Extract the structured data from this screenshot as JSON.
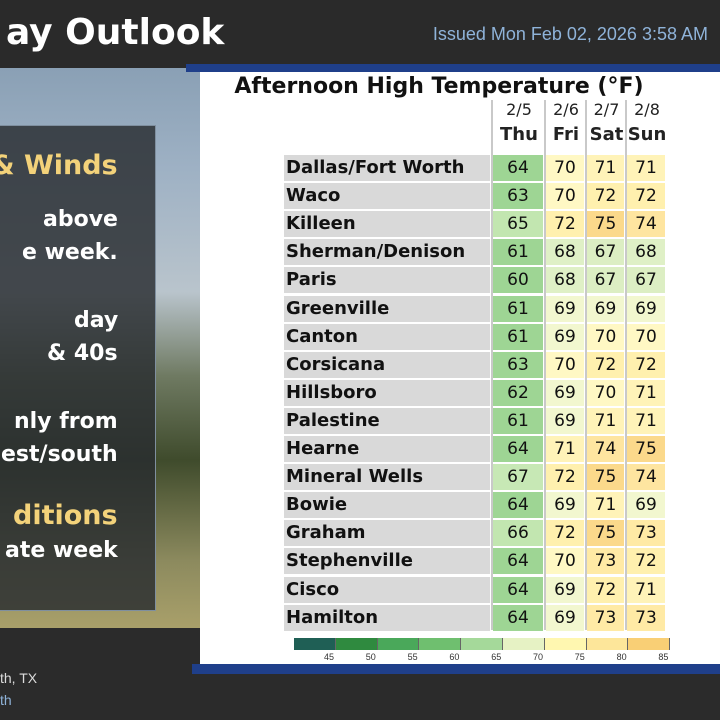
{
  "header": {
    "title": "ay Outlook",
    "issued": "Issued Mon Feb 02, 2026 3:58 AM"
  },
  "side_panel": {
    "lines": [
      {
        "text": "& Winds",
        "style": "head"
      },
      {
        "text": "above",
        "style": "body"
      },
      {
        "text": "e week.",
        "style": "body"
      },
      {
        "text": "day",
        "style": "body"
      },
      {
        "text": "& 40s",
        "style": "body"
      },
      {
        "text": "nly from",
        "style": "body"
      },
      {
        "text": "est/south",
        "style": "body"
      },
      {
        "text": "ditions",
        "style": "head"
      },
      {
        "text": "ate week",
        "style": "body"
      }
    ]
  },
  "footer": {
    "location": "th, TX",
    "link": "th"
  },
  "table": {
    "title": "Afternoon High Temperature (°F)",
    "columns": [
      {
        "date": "2/5",
        "day": "Thu"
      },
      {
        "date": "2/6",
        "day": "Fri"
      },
      {
        "date": "2/7",
        "day": "Sat"
      },
      {
        "date": "2/8",
        "day": "Sun"
      }
    ],
    "rows": [
      {
        "city": "Dallas/Fort Worth",
        "values": [
          64,
          70,
          71,
          71
        ]
      },
      {
        "city": "Waco",
        "values": [
          63,
          70,
          72,
          72
        ]
      },
      {
        "city": "Killeen",
        "values": [
          65,
          72,
          75,
          74
        ]
      },
      {
        "city": "Sherman/Denison",
        "values": [
          61,
          68,
          67,
          68
        ]
      },
      {
        "city": "Paris",
        "values": [
          60,
          68,
          67,
          67
        ]
      },
      {
        "city": "Greenville",
        "values": [
          61,
          69,
          69,
          69
        ]
      },
      {
        "city": "Canton",
        "values": [
          61,
          69,
          70,
          70
        ]
      },
      {
        "city": "Corsicana",
        "values": [
          63,
          70,
          72,
          72
        ]
      },
      {
        "city": "Hillsboro",
        "values": [
          62,
          69,
          70,
          71
        ]
      },
      {
        "city": "Palestine",
        "values": [
          61,
          69,
          71,
          71
        ]
      },
      {
        "city": "Hearne",
        "values": [
          64,
          71,
          74,
          75
        ]
      },
      {
        "city": "Mineral Wells",
        "values": [
          67,
          72,
          75,
          74
        ]
      },
      {
        "city": "Bowie",
        "values": [
          64,
          69,
          71,
          69
        ]
      },
      {
        "city": "Graham",
        "values": [
          66,
          72,
          75,
          73
        ]
      },
      {
        "city": "Stephenville",
        "values": [
          64,
          70,
          73,
          72
        ]
      },
      {
        "city": "Cisco",
        "values": [
          64,
          69,
          72,
          71
        ]
      },
      {
        "city": "Hamilton",
        "values": [
          64,
          69,
          73,
          73
        ]
      }
    ],
    "colorbar": {
      "ticks": [
        "45",
        "50",
        "55",
        "60",
        "65",
        "70",
        "75",
        "80",
        "85"
      ],
      "colors": [
        "#1f5f55",
        "#2f8a3f",
        "#4aa85a",
        "#6fbf6f",
        "#a5d99a",
        "#e6f2c4",
        "#fff7b0",
        "#fde69a",
        "#f9cf75"
      ]
    }
  }
}
